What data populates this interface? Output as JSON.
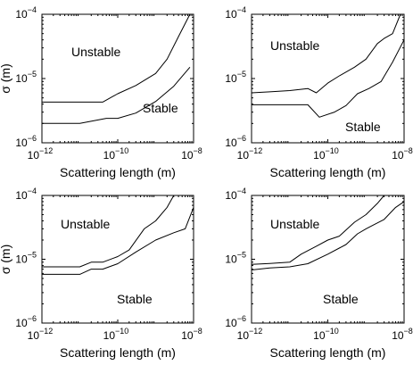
{
  "chart_data": [
    {
      "type": "line",
      "xlabel": "Scattering length (m)",
      "ylabel": "σ (m)",
      "xscale": "log",
      "yscale": "log",
      "xlim": [
        1e-12,
        1e-08
      ],
      "ylim": [
        1e-06,
        0.0001
      ],
      "x_ticks": [
        {
          "base": "10",
          "exp": "−12"
        },
        {
          "base": "10",
          "exp": "−10"
        },
        {
          "base": "10",
          "exp": "−8"
        }
      ],
      "y_ticks": [
        {
          "base": "10",
          "exp": "−6"
        },
        {
          "base": "10",
          "exp": "−5"
        },
        {
          "base": "10",
          "exp": "−4"
        }
      ],
      "annotations": [
        "Unstable",
        "Stable"
      ],
      "series": [
        {
          "x": [
            1e-12,
            3e-12,
            1e-11,
            4e-11,
            1e-10,
            3e-10,
            1e-09,
            2e-09,
            4e-09,
            8e-09
          ],
          "y": [
            4.3e-06,
            4.3e-06,
            4.3e-06,
            4.3e-06,
            5.8e-06,
            7.8e-06,
            1.2e-05,
            2e-05,
            4.5e-05,
            0.0001
          ]
        },
        {
          "x": [
            1e-12,
            3e-12,
            1e-11,
            5e-11,
            1e-10,
            3e-10,
            1e-09,
            3e-09,
            8e-09
          ],
          "y": [
            2e-06,
            2e-06,
            2e-06,
            2.4e-06,
            2.4e-06,
            2.9e-06,
            4.4e-06,
            7.6e-06,
            1.5e-05
          ]
        }
      ]
    },
    {
      "type": "line",
      "xlabel": "Scattering length (m)",
      "ylabel": "",
      "xscale": "log",
      "yscale": "log",
      "xlim": [
        1e-12,
        1e-08
      ],
      "ylim": [
        1e-06,
        0.0001
      ],
      "x_ticks": [
        {
          "base": "10",
          "exp": "−12"
        },
        {
          "base": "10",
          "exp": "−10"
        },
        {
          "base": "10",
          "exp": "−8"
        }
      ],
      "y_ticks": [
        {
          "base": "10",
          "exp": "−6"
        },
        {
          "base": "10",
          "exp": "−5"
        },
        {
          "base": "10",
          "exp": "−4"
        }
      ],
      "annotations": [
        "Unstable",
        "Stable"
      ],
      "series": [
        {
          "x": [
            1e-12,
            3e-12,
            1e-11,
            3e-11,
            5e-11,
            1e-10,
            2e-10,
            5e-10,
            1e-09,
            2e-09,
            3e-09,
            5e-09,
            8e-09
          ],
          "y": [
            6e-06,
            6.2e-06,
            6.5e-06,
            7e-06,
            6e-06,
            8.5e-06,
            1.1e-05,
            1.5e-05,
            2e-05,
            3.5e-05,
            4.2e-05,
            5e-05,
            0.0001
          ]
        },
        {
          "x": [
            1e-12,
            3e-12,
            1e-11,
            3e-11,
            6e-11,
            1.5e-10,
            3e-10,
            6e-10,
            1.2e-09,
            2.5e-09,
            5e-09,
            1e-08
          ],
          "y": [
            3.9e-06,
            3.9e-06,
            3.9e-06,
            3.9e-06,
            2.5e-06,
            3e-06,
            3.8e-06,
            5.8e-06,
            7e-06,
            9e-06,
            1.8e-05,
            4e-05
          ]
        }
      ]
    },
    {
      "type": "line",
      "xlabel": "Scattering length (m)",
      "ylabel": "σ (m)",
      "xscale": "log",
      "yscale": "log",
      "xlim": [
        1e-12,
        1e-08
      ],
      "ylim": [
        1e-06,
        0.0001
      ],
      "x_ticks": [
        {
          "base": "10",
          "exp": "−12"
        },
        {
          "base": "10",
          "exp": "−10"
        },
        {
          "base": "10",
          "exp": "−8"
        }
      ],
      "y_ticks": [
        {
          "base": "10",
          "exp": "−6"
        },
        {
          "base": "10",
          "exp": "−5"
        },
        {
          "base": "10",
          "exp": "−4"
        }
      ],
      "annotations": [
        "Unstable",
        "Stable"
      ],
      "series": [
        {
          "x": [
            1e-12,
            3e-12,
            1e-11,
            2e-11,
            4e-11,
            1e-10,
            2e-10,
            5e-10,
            1e-09,
            2e-09,
            3e-09
          ],
          "y": [
            7.6e-06,
            7.6e-06,
            7.6e-06,
            9e-06,
            9e-06,
            1.1e-05,
            1.4e-05,
            3e-05,
            4e-05,
            6.5e-05,
            0.0001
          ]
        },
        {
          "x": [
            1e-12,
            3e-12,
            1e-11,
            2e-11,
            4e-11,
            1e-10,
            3e-10,
            1e-09,
            3e-09,
            6e-09,
            1e-08
          ],
          "y": [
            5.8e-06,
            5.8e-06,
            5.8e-06,
            7e-06,
            7e-06,
            8.5e-06,
            1.3e-05,
            2e-05,
            2.6e-05,
            3e-05,
            6.5e-05
          ]
        }
      ]
    },
    {
      "type": "line",
      "xlabel": "Scattering length (m)",
      "ylabel": "",
      "xscale": "log",
      "yscale": "log",
      "xlim": [
        1e-12,
        1e-08
      ],
      "ylim": [
        1e-06,
        0.0001
      ],
      "x_ticks": [
        {
          "base": "10",
          "exp": "−12"
        },
        {
          "base": "10",
          "exp": "−10"
        },
        {
          "base": "10",
          "exp": "−8"
        }
      ],
      "y_ticks": [
        {
          "base": "10",
          "exp": "−6"
        },
        {
          "base": "10",
          "exp": "−5"
        },
        {
          "base": "10",
          "exp": "−4"
        }
      ],
      "annotations": [
        "Unstable",
        "Stable"
      ],
      "series": [
        {
          "x": [
            1e-12,
            3e-12,
            1e-11,
            2e-11,
            5e-11,
            1e-10,
            2e-10,
            5e-10,
            1e-09,
            2e-09,
            3e-09
          ],
          "y": [
            8.3e-06,
            8.6e-06,
            9e-06,
            1.2e-05,
            1.6e-05,
            2e-05,
            2.3e-05,
            3.8e-05,
            5e-05,
            7.5e-05,
            0.0001
          ]
        },
        {
          "x": [
            1e-12,
            3e-12,
            1e-11,
            3e-11,
            1e-10,
            3e-10,
            6e-10,
            1e-09,
            3e-09,
            6e-09,
            1e-08
          ],
          "y": [
            6.8e-06,
            7.3e-06,
            7.6e-06,
            8.5e-06,
            1.2e-05,
            1.7e-05,
            2.5e-05,
            3e-05,
            4.2e-05,
            6.5e-05,
            8e-05
          ]
        }
      ]
    }
  ]
}
